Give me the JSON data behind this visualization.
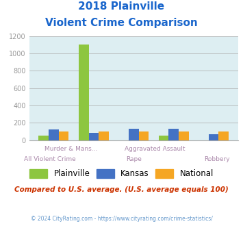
{
  "title_line1": "2018 Plainville",
  "title_line2": "Violent Crime Comparison",
  "categories": [
    "All Violent Crime",
    "Murder & Mans...",
    "Rape",
    "Aggravated Assault",
    "Robbery"
  ],
  "plainville": [
    50,
    1100,
    0,
    50,
    0
  ],
  "kansas": [
    120,
    85,
    130,
    130,
    65
  ],
  "national": [
    100,
    100,
    100,
    100,
    100
  ],
  "plainville_color": "#8dc63f",
  "kansas_color": "#4472c4",
  "national_color": "#f5a623",
  "bg_color": "#ddeef2",
  "ylim": [
    0,
    1200
  ],
  "yticks": [
    0,
    200,
    400,
    600,
    800,
    1000,
    1200
  ],
  "footnote": "Compared to U.S. average. (U.S. average equals 100)",
  "copyright": "© 2024 CityRating.com - https://www.cityrating.com/crime-statistics/",
  "title_color": "#1a66cc",
  "footnote_color": "#cc3300",
  "copyright_color": "#6699cc"
}
